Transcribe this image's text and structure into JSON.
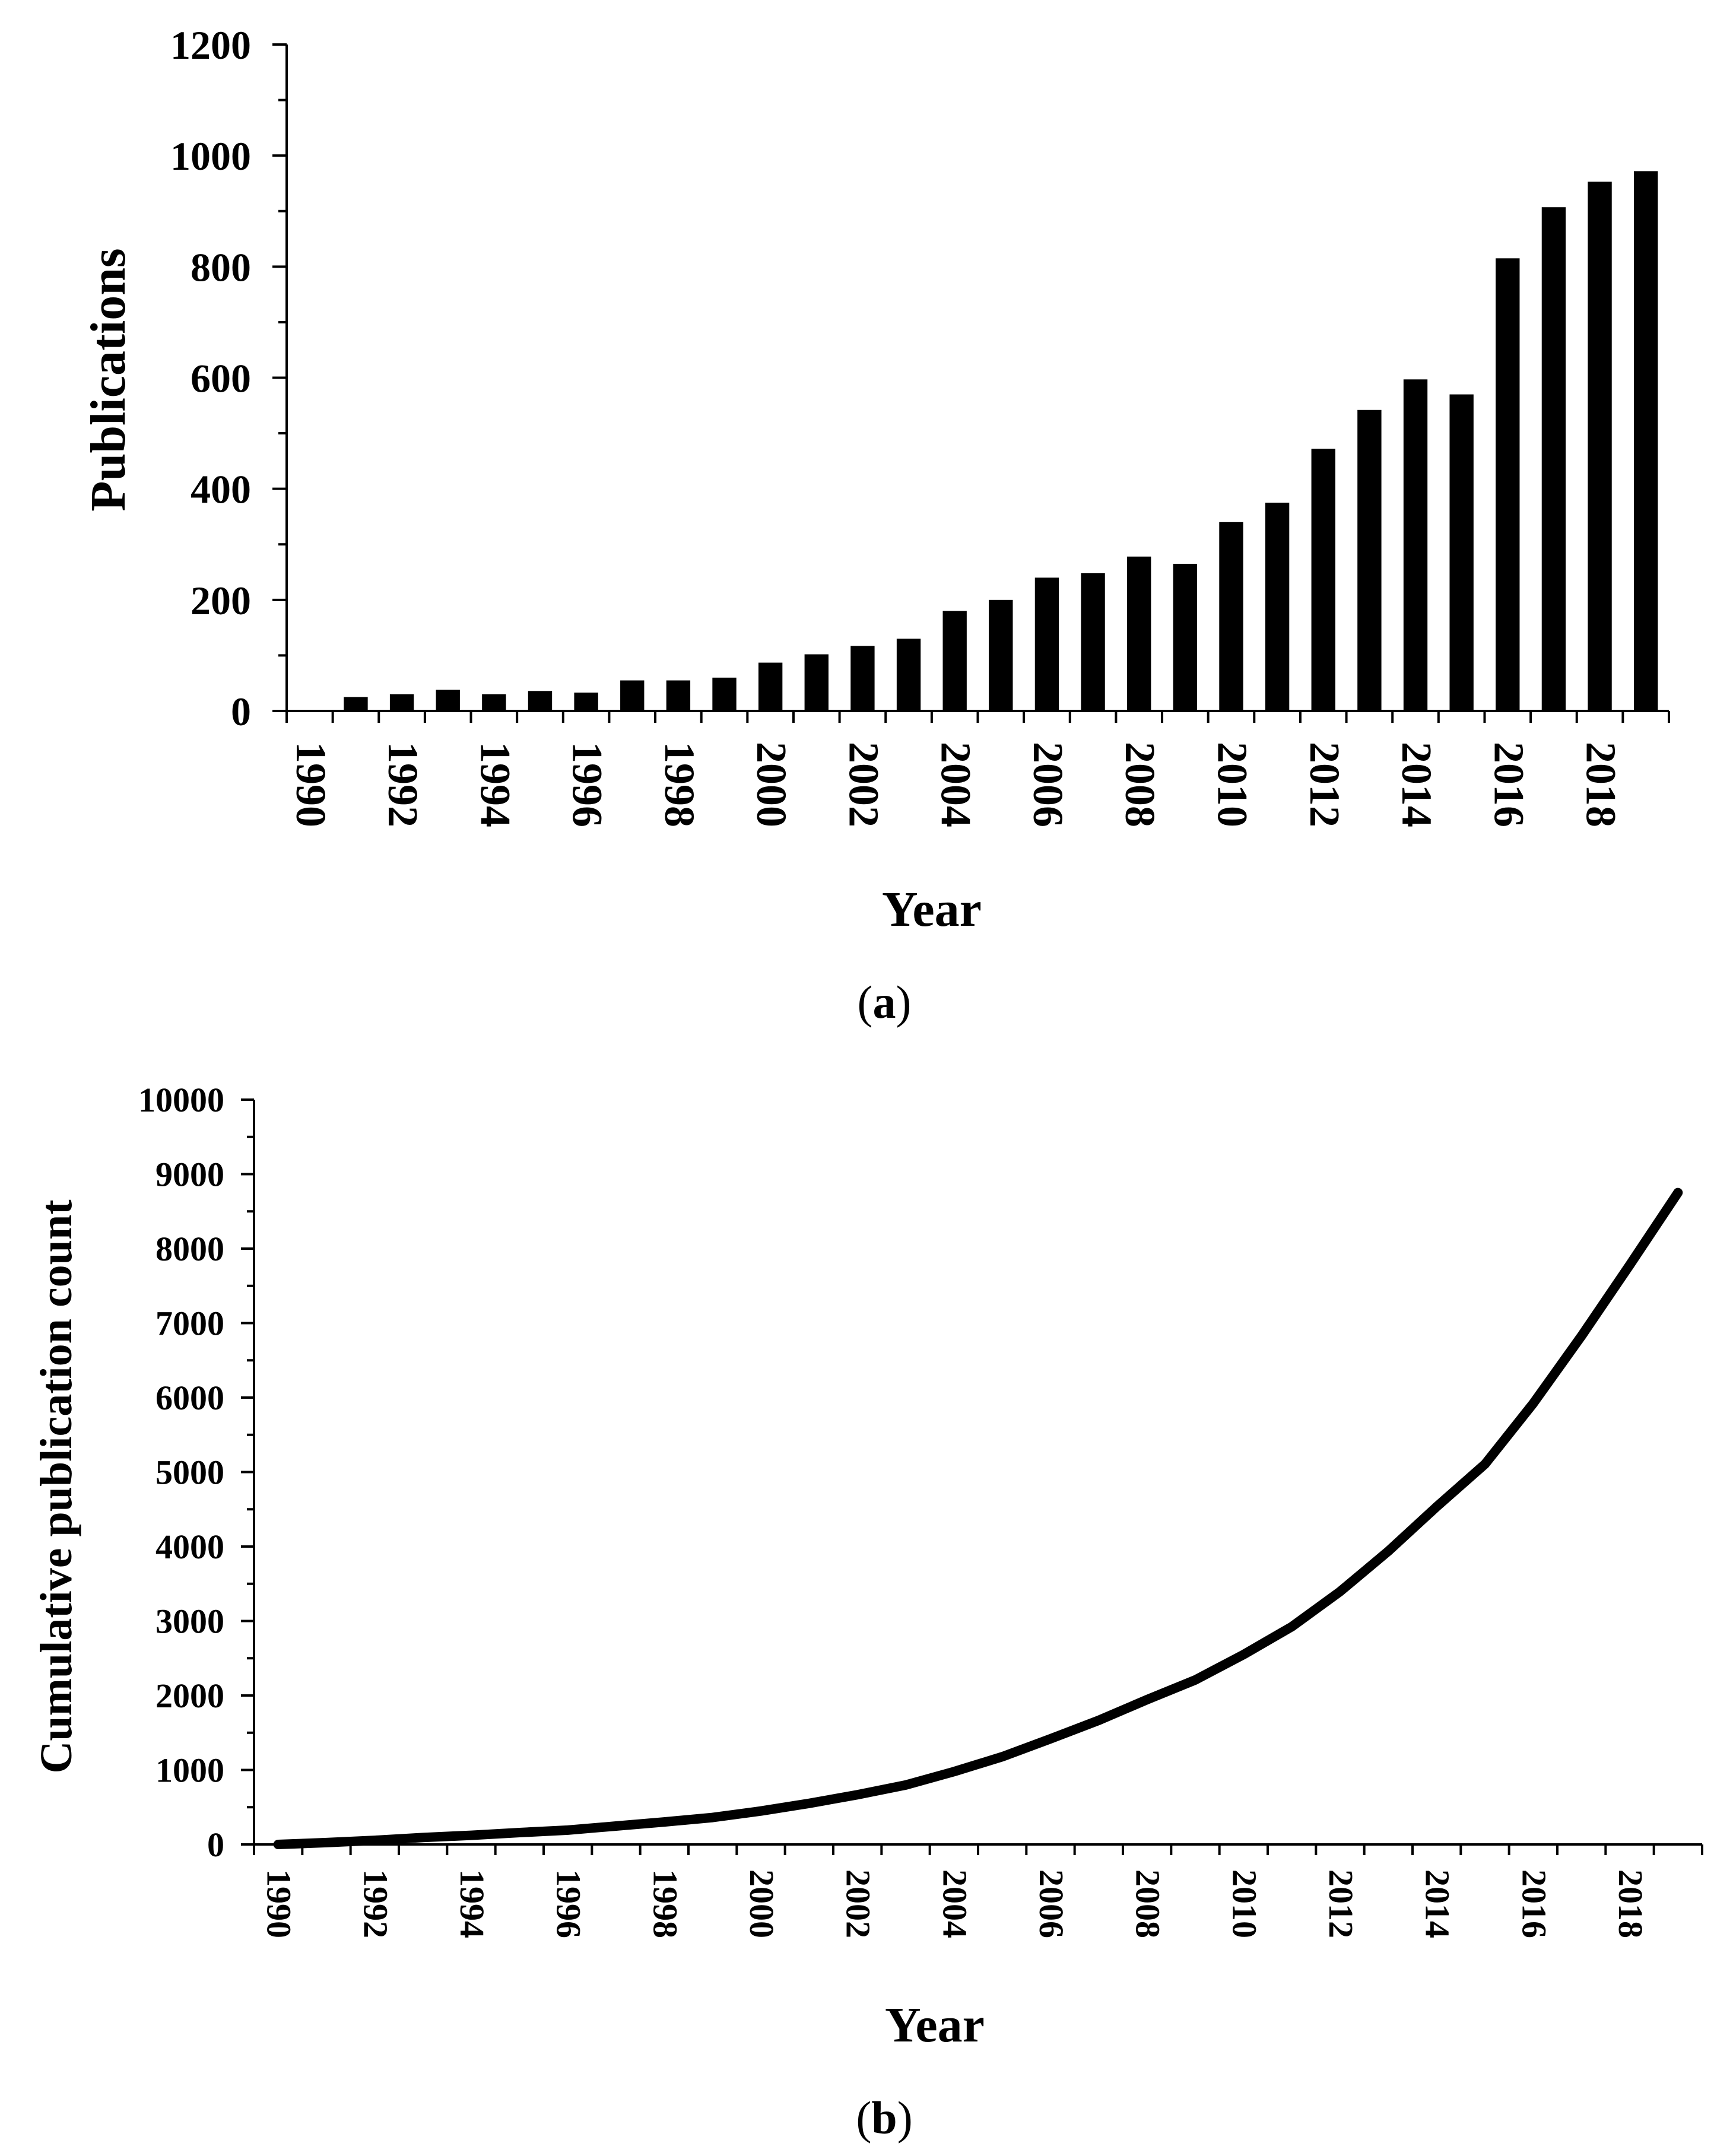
{
  "chart_data": [
    {
      "id": "a",
      "type": "bar",
      "caption_letter": "a",
      "xlabel": "Year",
      "ylabel": "Publications",
      "ylim": [
        0,
        1200
      ],
      "yticks": [
        0,
        200,
        400,
        600,
        800,
        1000,
        1200
      ],
      "categories": [
        1990,
        1991,
        1992,
        1993,
        1994,
        1995,
        1996,
        1997,
        1998,
        1999,
        2000,
        2001,
        2002,
        2003,
        2004,
        2005,
        2006,
        2007,
        2008,
        2009,
        2010,
        2011,
        2012,
        2013,
        2014,
        2015,
        2016,
        2017,
        2018,
        2019
      ],
      "xtick_labels": [
        "1990",
        "1992",
        "1994",
        "1996",
        "1998",
        "2000",
        "2002",
        "2004",
        "2006",
        "2008",
        "2010",
        "2012",
        "2014",
        "2016",
        "2018"
      ],
      "values": [
        0,
        25,
        30,
        38,
        30,
        36,
        33,
        55,
        55,
        60,
        87,
        102,
        117,
        130,
        180,
        200,
        240,
        248,
        278,
        265,
        340,
        375,
        472,
        542,
        597,
        570,
        815,
        907,
        953,
        972
      ],
      "bar_color": "#000000",
      "grid": false
    },
    {
      "id": "b",
      "type": "line",
      "caption_letter": "b",
      "xlabel": "Year",
      "ylabel": "Cumulative publication count",
      "ylim": [
        0,
        10000
      ],
      "yticks": [
        0,
        1000,
        2000,
        3000,
        4000,
        5000,
        6000,
        7000,
        8000,
        9000,
        10000
      ],
      "x": [
        1990,
        1991,
        1992,
        1993,
        1994,
        1995,
        1996,
        1997,
        1998,
        1999,
        2000,
        2001,
        2002,
        2003,
        2004,
        2005,
        2006,
        2007,
        2008,
        2009,
        2010,
        2011,
        2012,
        2013,
        2014,
        2015,
        2016,
        2017,
        2018,
        2019
      ],
      "xtick_labels": [
        "1990",
        "1992",
        "1994",
        "1996",
        "1998",
        "2000",
        "2002",
        "2004",
        "2006",
        "2008",
        "2010",
        "2012",
        "2014",
        "2016",
        "2018"
      ],
      "values": [
        0,
        25,
        55,
        93,
        123,
        159,
        192,
        247,
        302,
        362,
        449,
        551,
        668,
        798,
        978,
        1178,
        1418,
        1666,
        1944,
        2209,
        2549,
        2924,
        3396,
        3938,
        4535,
        5105,
        5920,
        6827,
        7780,
        8752
      ],
      "line_color": "#000000",
      "grid": false
    }
  ]
}
